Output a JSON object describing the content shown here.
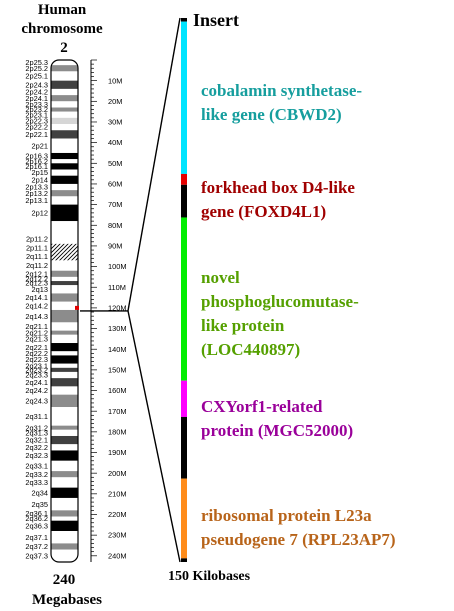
{
  "title": {
    "line1": "Human",
    "line2": "chromosome",
    "line3": "2"
  },
  "bottom_left": {
    "line1": "240",
    "line2": "Megabases"
  },
  "insert_label": "Insert",
  "insert_scale_label": "150 Kilobases",
  "chromosome": {
    "length_mb": 243,
    "position_marker_mb": 120,
    "bands": [
      {
        "label": "2p25.3",
        "start": 0,
        "end": 2.5,
        "stain": "white"
      },
      {
        "label": "2p25.2",
        "start": 2.5,
        "end": 5.5,
        "stain": "gray"
      },
      {
        "label": "2p25.1",
        "start": 5.5,
        "end": 10,
        "stain": "white"
      },
      {
        "label": "2p24.3",
        "start": 10,
        "end": 14,
        "stain": "dark"
      },
      {
        "label": "2p24.2",
        "start": 14,
        "end": 17,
        "stain": "white"
      },
      {
        "label": "2p24.1",
        "start": 17,
        "end": 20,
        "stain": "gray"
      },
      {
        "label": "2p23.3",
        "start": 20,
        "end": 23,
        "stain": "white"
      },
      {
        "label": "2p23.2",
        "start": 23,
        "end": 25,
        "stain": "gray"
      },
      {
        "label": "2p23.1",
        "start": 25,
        "end": 28,
        "stain": "white"
      },
      {
        "label": "2p22.3",
        "start": 28,
        "end": 31,
        "stain": "lightgray"
      },
      {
        "label": "2p22.2",
        "start": 31,
        "end": 34,
        "stain": "white"
      },
      {
        "label": "2p22.1",
        "start": 34,
        "end": 38,
        "stain": "dark"
      },
      {
        "label": "2p21",
        "start": 38,
        "end": 45,
        "stain": "white"
      },
      {
        "label": "2p16.3",
        "start": 45,
        "end": 48,
        "stain": "black"
      },
      {
        "label": "2p16.2",
        "start": 48,
        "end": 50,
        "stain": "white"
      },
      {
        "label": "2p16.1",
        "start": 50,
        "end": 53,
        "stain": "black"
      },
      {
        "label": "2p15",
        "start": 53,
        "end": 56,
        "stain": "white"
      },
      {
        "label": "2p14",
        "start": 56,
        "end": 60,
        "stain": "black"
      },
      {
        "label": "2p13.3",
        "start": 60,
        "end": 63,
        "stain": "white"
      },
      {
        "label": "2p13.2",
        "start": 63,
        "end": 66,
        "stain": "gray"
      },
      {
        "label": "2p13.1",
        "start": 66,
        "end": 70,
        "stain": "white"
      },
      {
        "label": "2p12",
        "start": 70,
        "end": 78,
        "stain": "black"
      },
      {
        "label": "",
        "start": 78,
        "end": 84,
        "stain": "white"
      },
      {
        "label": "2p11.2",
        "start": 84,
        "end": 89,
        "stain": "white"
      },
      {
        "label": "2p11.1",
        "start": 89,
        "end": 93,
        "stain": "hatch"
      },
      {
        "label": "2q11.1",
        "start": 93,
        "end": 97,
        "stain": "hatch"
      },
      {
        "label": "2q11.2",
        "start": 97,
        "end": 102,
        "stain": "white"
      },
      {
        "label": "2q12.1",
        "start": 102,
        "end": 105,
        "stain": "gray"
      },
      {
        "label": "2q12.2",
        "start": 105,
        "end": 107,
        "stain": "white"
      },
      {
        "label": "2q12.3",
        "start": 107,
        "end": 109,
        "stain": "dark"
      },
      {
        "label": "2q13",
        "start": 109,
        "end": 113,
        "stain": "white"
      },
      {
        "label": "2q14.1",
        "start": 113,
        "end": 117,
        "stain": "gray"
      },
      {
        "label": "2q14.2",
        "start": 117,
        "end": 121,
        "stain": "white"
      },
      {
        "label": "2q14.3",
        "start": 121,
        "end": 127,
        "stain": "gray"
      },
      {
        "label": "2q21.1",
        "start": 127,
        "end": 131,
        "stain": "white"
      },
      {
        "label": "2q21.2",
        "start": 131,
        "end": 133,
        "stain": "gray"
      },
      {
        "label": "2q21.3",
        "start": 133,
        "end": 137,
        "stain": "white"
      },
      {
        "label": "2q22.1",
        "start": 137,
        "end": 141,
        "stain": "black"
      },
      {
        "label": "2q22.2",
        "start": 141,
        "end": 143,
        "stain": "white"
      },
      {
        "label": "2q22.3",
        "start": 143,
        "end": 147,
        "stain": "black"
      },
      {
        "label": "2q23.1",
        "start": 147,
        "end": 149,
        "stain": "white"
      },
      {
        "label": "2q23.2",
        "start": 149,
        "end": 151,
        "stain": "dark"
      },
      {
        "label": "2q23.3",
        "start": 151,
        "end": 154,
        "stain": "white"
      },
      {
        "label": "2q24.1",
        "start": 154,
        "end": 158,
        "stain": "dark"
      },
      {
        "label": "2q24.2",
        "start": 158,
        "end": 162,
        "stain": "white"
      },
      {
        "label": "2q24.3",
        "start": 162,
        "end": 168,
        "stain": "gray"
      },
      {
        "label": "2q31.1",
        "start": 168,
        "end": 177,
        "stain": "white"
      },
      {
        "label": "2q31.2",
        "start": 177,
        "end": 179,
        "stain": "gray"
      },
      {
        "label": "2q31.3",
        "start": 179,
        "end": 182,
        "stain": "white"
      },
      {
        "label": "2q32.1",
        "start": 182,
        "end": 186,
        "stain": "dark"
      },
      {
        "label": "2q32.2",
        "start": 186,
        "end": 189,
        "stain": "white"
      },
      {
        "label": "2q32.3",
        "start": 189,
        "end": 194,
        "stain": "black"
      },
      {
        "label": "2q33.1",
        "start": 194,
        "end": 199,
        "stain": "white"
      },
      {
        "label": "2q33.2",
        "start": 199,
        "end": 202,
        "stain": "gray"
      },
      {
        "label": "2q33.3",
        "start": 202,
        "end": 207,
        "stain": "white"
      },
      {
        "label": "2q34",
        "start": 207,
        "end": 212,
        "stain": "black"
      },
      {
        "label": "2q35",
        "start": 212,
        "end": 218,
        "stain": "white"
      },
      {
        "label": "2q36.1",
        "start": 218,
        "end": 221,
        "stain": "gray"
      },
      {
        "label": "2q36.2",
        "start": 221,
        "end": 223,
        "stain": "white"
      },
      {
        "label": "2q36.3",
        "start": 223,
        "end": 228,
        "stain": "black"
      },
      {
        "label": "2q37.1",
        "start": 228,
        "end": 234,
        "stain": "white"
      },
      {
        "label": "2q37.2",
        "start": 234,
        "end": 237,
        "stain": "gray"
      },
      {
        "label": "2q37.3",
        "start": 237,
        "end": 243,
        "stain": "white"
      }
    ],
    "ruler_ticks": [
      "10M",
      "20M",
      "30M",
      "40M",
      "50M",
      "60M",
      "70M",
      "80M",
      "90M",
      "100M",
      "110M",
      "120M",
      "130M",
      "140M",
      "150M",
      "160M",
      "170M",
      "180M",
      "190M",
      "200M",
      "210M",
      "220M",
      "230M",
      "240M"
    ]
  },
  "insert": {
    "segments": [
      {
        "start": 0,
        "end": 1,
        "color": "#000000"
      },
      {
        "start": 1,
        "end": 43,
        "color": "#00e5ff"
      },
      {
        "start": 43,
        "end": 46,
        "color": "#e60000"
      },
      {
        "start": 46,
        "end": 55,
        "color": "#000000"
      },
      {
        "start": 55,
        "end": 100,
        "color": "#00ee00"
      },
      {
        "start": 100,
        "end": 110,
        "color": "#ff00ff"
      },
      {
        "start": 110,
        "end": 127,
        "color": "#000000"
      },
      {
        "start": 127,
        "end": 149,
        "color": "#ff8c1a"
      },
      {
        "start": 149,
        "end": 150,
        "color": "#000000"
      }
    ],
    "genes": [
      {
        "lines": [
          "cobalamin synthetase-",
          "like gene (CBWD2)"
        ],
        "color": "#169e9e"
      },
      {
        "lines": [
          "forkhead box D4-like",
          "gene (FOXD4L1)"
        ],
        "color": "#a00000"
      },
      {
        "lines": [
          "novel",
          "phosphoglucomutase-",
          "like protein",
          "(LOC440897)"
        ],
        "color": "#55a000"
      },
      {
        "lines": [
          "CXYorf1-related",
          "protein (MGC52000)"
        ],
        "color": "#9a009a"
      },
      {
        "lines": [
          "ribosomal protein L23a",
          "pseudogene 7 (RPL23AP7)"
        ],
        "color": "#b8641a"
      }
    ]
  }
}
